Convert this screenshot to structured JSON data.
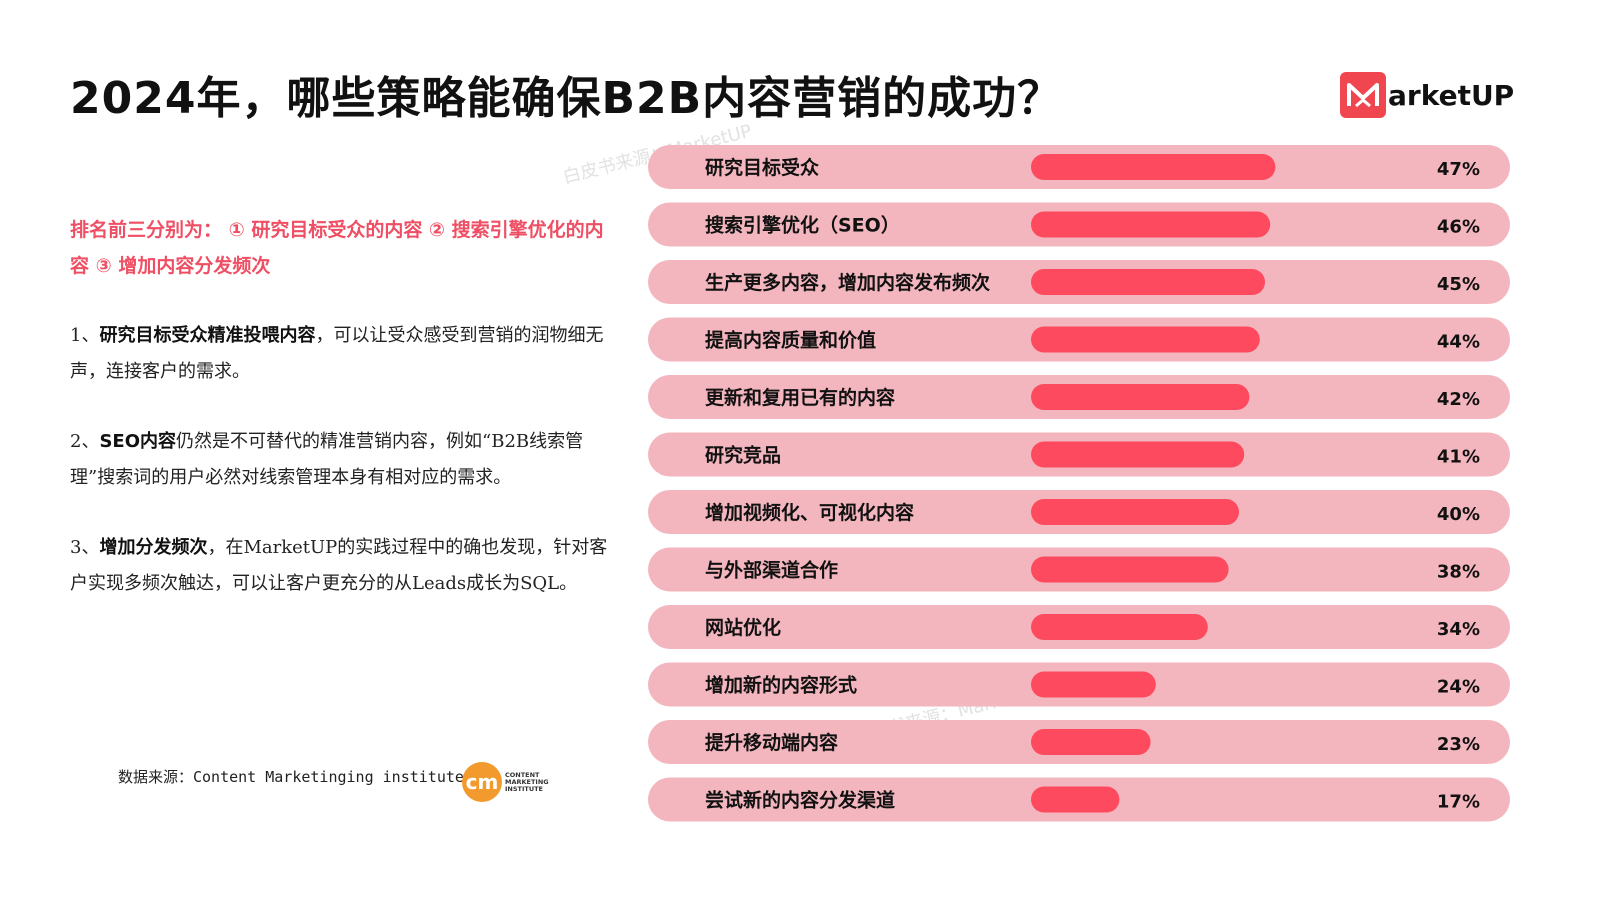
{
  "title": "2024年，哪些策略能确保B2B内容营销的成功？",
  "logo": {
    "text": "arketUP"
  },
  "watermarks": [
    "白皮书来源：MarketUP",
    "白皮书来源：MarketUP"
  ],
  "highlight": "排名前三分别为： ① 研究目标受众的内容 ② 搜索引擎优化的内容 ③ 增加内容分发频次",
  "paragraphs": [
    {
      "bold": "研究目标受众精准投喂内容",
      "prefix": "1、",
      "text": "，可以让受众感受到营销的润物细无声，连接客户的需求。"
    },
    {
      "bold": "SEO内容",
      "prefix": " 2、",
      "text": "仍然是不可替代的精准营销内容，例如“B2B线索管理”搜索词的用户必然对线索管理本身有相对应的需求。"
    },
    {
      "bold": "增加分发频次",
      "prefix": "3、",
      "text": "，在MarketUP的实践过程中的确也发现，针对客户实现多频次触达，可以让客户更充分的从Leads成长为SQL。"
    }
  ],
  "source": "数据来源：Content Marketinging institute",
  "cmi": {
    "mark": "cm",
    "text": "CONTENT MARKETING INSTITUTE"
  },
  "colors": {
    "bar": "#fe4a5e",
    "row_bg": "#f3b6be",
    "highlight": "#ef4f64"
  },
  "chart_data": {
    "type": "bar",
    "orientation": "horizontal",
    "categories": [
      "研究目标受众",
      "搜索引擎优化（SEO）",
      "生产更多内容，增加内容发布频次",
      "提高内容质量和价值",
      "更新和复用已有的内容",
      "研究竞品",
      "增加视频化、可视化内容",
      "与外部渠道合作",
      "网站优化",
      "增加新的内容形式",
      "提升移动端内容",
      "尝试新的内容分发渠道"
    ],
    "values": [
      47,
      46,
      45,
      44,
      42,
      41,
      40,
      38,
      34,
      24,
      23,
      17
    ],
    "value_labels": [
      "47%",
      "46%",
      "45%",
      "44%",
      "42%",
      "41%",
      "40%",
      "38%",
      "34%",
      "24%",
      "23%",
      "17%"
    ],
    "unit": "%"
  }
}
